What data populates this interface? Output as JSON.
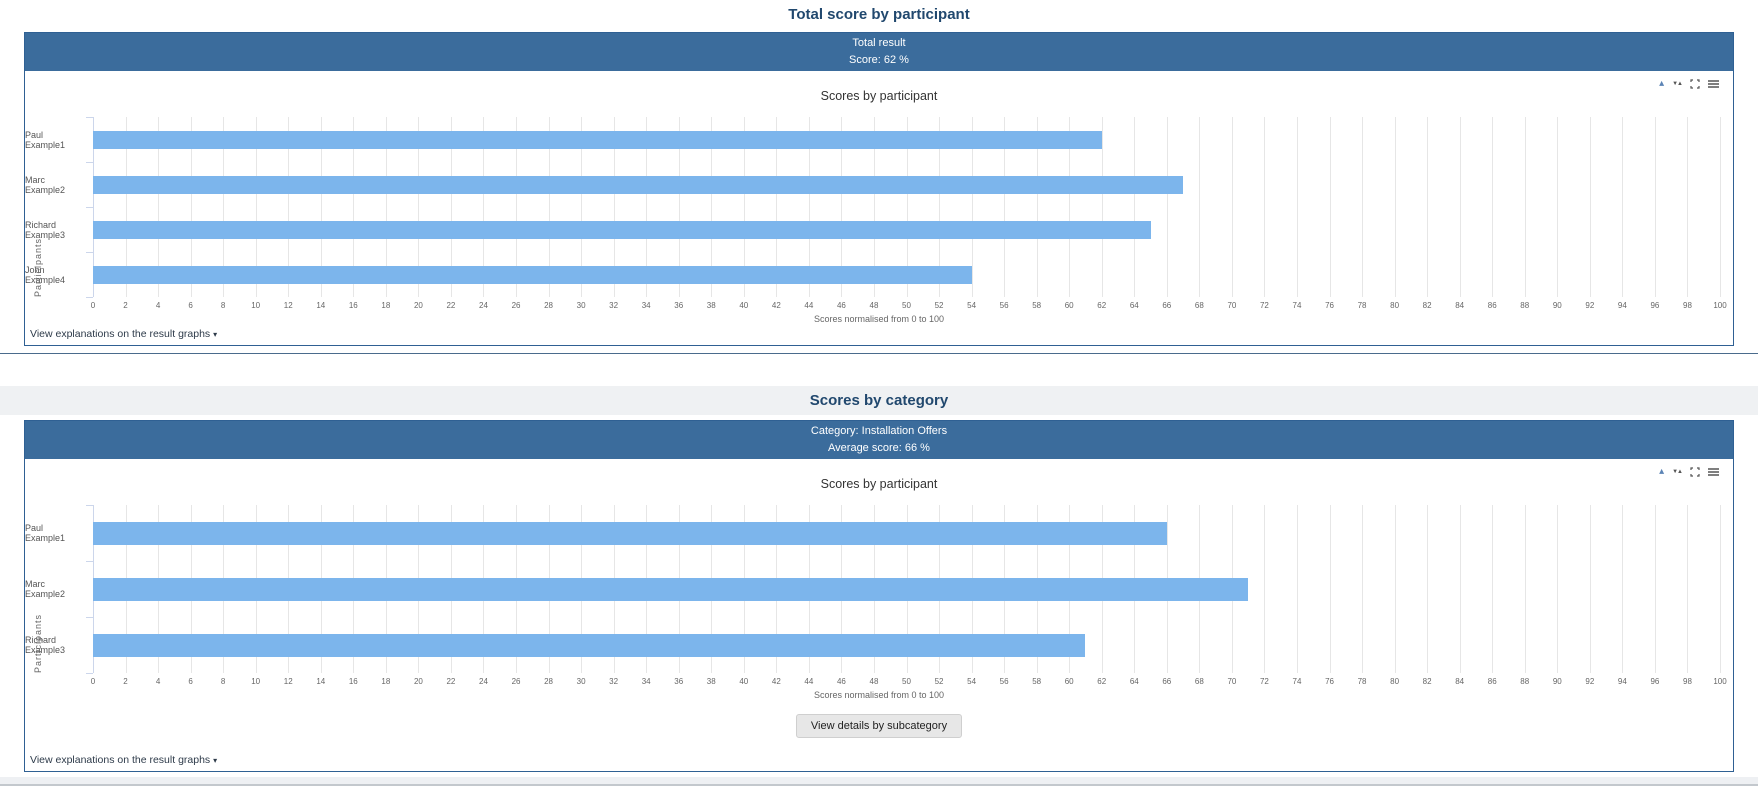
{
  "page": {
    "sections": [
      {
        "title": "Total score by participant"
      },
      {
        "title": "Scores by category"
      }
    ]
  },
  "cards": [
    {
      "header_line1": "Total result",
      "header_line2": "Score: 62 %",
      "footer_link": "View explanations on the result graphs",
      "footer_link_caret": "▾"
    },
    {
      "header_line1": "Category: Installation Offers",
      "header_line2": "Average score: 66 %",
      "details_button_label": "View details by subcategory",
      "footer_link": "View explanations on the result graphs",
      "footer_link_caret": "▾"
    }
  ],
  "toolbar_icons": {
    "label_toggle_glyph": "▴",
    "sort_glyph": "▼▲"
  },
  "colors": {
    "header_bg": "#3b6c9c",
    "card_border": "#2f6093",
    "section_title_text": "#21486e",
    "bar_fill": "#7cb5ec",
    "gridline": "#e6e6e6",
    "axis_line": "#ccd6eb"
  },
  "chart_data": [
    {
      "type": "bar",
      "orientation": "horizontal",
      "title": "Scores by participant",
      "categories": [
        "Paul Example1",
        "Marc Example2",
        "Richard Example3",
        "John Example4"
      ],
      "values": [
        62,
        67,
        65,
        54
      ],
      "xlabel": "Scores normalised from 0 to 100",
      "ylabel": "Participants",
      "xlim": [
        0,
        100
      ],
      "tick_step": 2,
      "grid": true,
      "legend": false,
      "bar_color": "#7cb5ec"
    },
    {
      "type": "bar",
      "orientation": "horizontal",
      "title": "Scores by participant",
      "categories": [
        "Paul Example1",
        "Marc Example2",
        "Richard Example3"
      ],
      "values": [
        66,
        71,
        61
      ],
      "xlabel": "Scores normalised from 0 to 100",
      "ylabel": "Participants",
      "xlim": [
        0,
        100
      ],
      "tick_step": 2,
      "grid": true,
      "legend": false,
      "bar_color": "#7cb5ec"
    }
  ]
}
